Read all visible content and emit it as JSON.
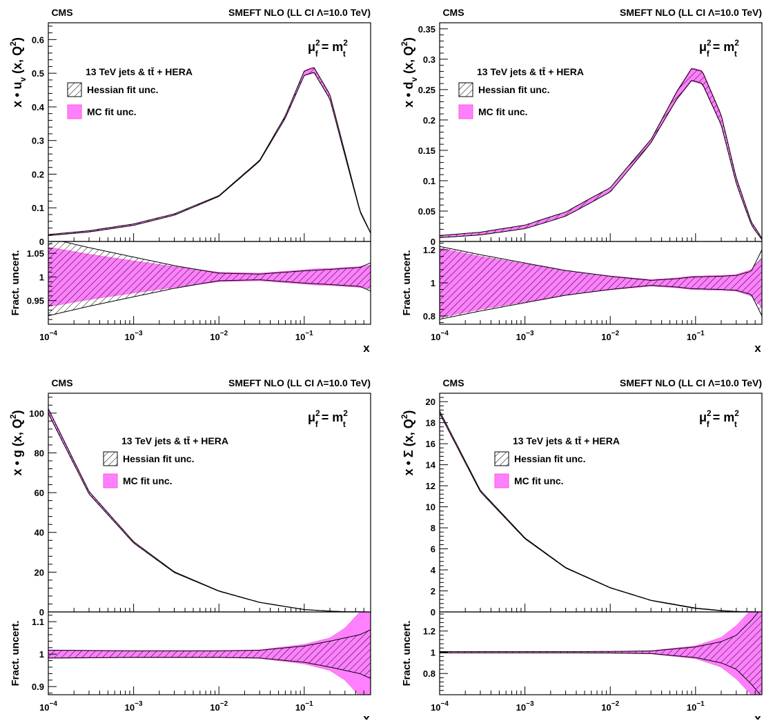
{
  "colors": {
    "mc_band_fill": "#ff80ff",
    "mc_band_edge": "#ff55d4",
    "hessian_hatch": "#000000",
    "axis": "#000000",
    "background": "#ffffff"
  },
  "chart_data": [
    {
      "type": "area",
      "id": "uv",
      "cms_label": "CMS",
      "header": "SMEFT NLO (LL CI Λ=10.0 TeV)",
      "scale_label": {
        "mu": "μ",
        "f_sub": "f",
        "sq": "2",
        "eq": " = m",
        "t_sub": "t",
        "t_sq": "2"
      },
      "ylabel": {
        "prefix": "x • u",
        "sub": "v",
        "suffix": " (x, Q",
        "sup": "2",
        "close": ")"
      },
      "ratio_ylabel": "Fract. uncert.",
      "xlabel": "x",
      "x_log": true,
      "xlim": [
        0.0001,
        0.6
      ],
      "x_ticks": [
        {
          "base": "10",
          "exp": "−4"
        },
        {
          "base": "10",
          "exp": "−3"
        },
        {
          "base": "10",
          "exp": "−2"
        },
        {
          "base": "10",
          "exp": "−1"
        }
      ],
      "ylim": [
        0,
        0.65
      ],
      "y_tick_labels": [
        "0",
        "0.1",
        "0.2",
        "0.3",
        "0.4",
        "0.5",
        "0.6"
      ],
      "ratio_ylim": [
        0.9,
        1.075
      ],
      "ratio_tick_labels": [
        "0.95",
        "1",
        "1.05"
      ],
      "legend": {
        "title": "13 TeV jets & tt̄ + HERA",
        "hessian": "Hessian fit unc.",
        "mc": "MC fit unc.",
        "position": "upper-left"
      },
      "x": [
        0.0001,
        0.0003,
        0.001,
        0.003,
        0.01,
        0.03,
        0.06,
        0.1,
        0.13,
        0.2,
        0.3,
        0.45,
        0.6
      ],
      "central": [
        0.019,
        0.03,
        0.05,
        0.08,
        0.135,
        0.24,
        0.37,
        0.5,
        0.51,
        0.43,
        0.26,
        0.09,
        0.025
      ],
      "hessian_frac": [
        0.082,
        0.062,
        0.042,
        0.024,
        0.008,
        0.006,
        0.01,
        0.013,
        0.014,
        0.016,
        0.018,
        0.02,
        0.03
      ],
      "mc_frac": [
        0.063,
        0.048,
        0.034,
        0.022,
        0.01,
        0.008,
        0.012,
        0.015,
        0.017,
        0.018,
        0.02,
        0.022,
        0.025
      ]
    },
    {
      "type": "area",
      "id": "dv",
      "cms_label": "CMS",
      "header": "SMEFT NLO (LL CI Λ=10.0 TeV)",
      "scale_label": {
        "mu": "μ",
        "f_sub": "f",
        "sq": "2",
        "eq": " = m",
        "t_sub": "t",
        "t_sq": "2"
      },
      "ylabel": {
        "prefix": "x • d",
        "sub": "v",
        "suffix": " (x, Q",
        "sup": "2",
        "close": ")"
      },
      "ratio_ylabel": "Fract. uncert.",
      "xlabel": "x",
      "x_log": true,
      "xlim": [
        0.0001,
        0.6
      ],
      "x_ticks": [
        {
          "base": "10",
          "exp": "−4"
        },
        {
          "base": "10",
          "exp": "−3"
        },
        {
          "base": "10",
          "exp": "−2"
        },
        {
          "base": "10",
          "exp": "−1"
        }
      ],
      "ylim": [
        0,
        0.36
      ],
      "y_tick_labels": [
        "0",
        "0.05",
        "0.1",
        "0.15",
        "0.2",
        "0.25",
        "0.3",
        "0.35"
      ],
      "ratio_ylim": [
        0.75,
        1.25
      ],
      "ratio_tick_labels": [
        "0.8",
        "1",
        "1.2"
      ],
      "legend": {
        "title": "13 TeV jets & tt̄ + HERA",
        "hessian": "Hessian fit unc.",
        "mc": "MC fit unc.",
        "position": "upper-left"
      },
      "x": [
        0.0001,
        0.0003,
        0.001,
        0.003,
        0.01,
        0.03,
        0.06,
        0.09,
        0.12,
        0.2,
        0.3,
        0.45,
        0.6
      ],
      "central": [
        0.008,
        0.013,
        0.024,
        0.045,
        0.085,
        0.165,
        0.24,
        0.275,
        0.27,
        0.2,
        0.1,
        0.03,
        0.004
      ],
      "hessian_frac": [
        0.22,
        0.17,
        0.12,
        0.075,
        0.04,
        0.015,
        0.025,
        0.035,
        0.037,
        0.04,
        0.045,
        0.07,
        0.2
      ],
      "mc_frac": [
        0.21,
        0.16,
        0.115,
        0.073,
        0.042,
        0.02,
        0.03,
        0.04,
        0.042,
        0.045,
        0.05,
        0.08,
        0.15
      ]
    },
    {
      "type": "area",
      "id": "g",
      "cms_label": "CMS",
      "header": "SMEFT NLO (LL CI Λ=10.0 TeV)",
      "scale_label": {
        "mu": "μ",
        "f_sub": "f",
        "sq": "2",
        "eq": " = m",
        "t_sub": "t",
        "t_sq": "2"
      },
      "ylabel": {
        "prefix": "x • g",
        "sub": "",
        "suffix": " (x, Q",
        "sup": "2",
        "close": ")"
      },
      "ratio_ylabel": "Fract. uncert.",
      "xlabel": "x",
      "x_log": true,
      "xlim": [
        0.0001,
        0.6
      ],
      "x_ticks": [
        {
          "base": "10",
          "exp": "−4"
        },
        {
          "base": "10",
          "exp": "−3"
        },
        {
          "base": "10",
          "exp": "−2"
        },
        {
          "base": "10",
          "exp": "−1"
        }
      ],
      "ylim": [
        0,
        110
      ],
      "y_tick_labels": [
        "0",
        "20",
        "40",
        "60",
        "80",
        "100"
      ],
      "ratio_ylim": [
        0.875,
        1.13
      ],
      "ratio_tick_labels": [
        "0.9",
        "1",
        "1.1"
      ],
      "legend": {
        "title": "13 TeV jets & tt̄ + HERA",
        "hessian": "Hessian fit unc.",
        "mc": "MC fit unc.",
        "position": "upper-center"
      },
      "x": [
        0.0001,
        0.0003,
        0.001,
        0.003,
        0.01,
        0.03,
        0.1,
        0.2,
        0.3,
        0.45,
        0.6
      ],
      "central": [
        101,
        60,
        35,
        20,
        10.5,
        4.8,
        1.2,
        0.4,
        0.13,
        0.03,
        0.005
      ],
      "hessian_frac": [
        0.012,
        0.011,
        0.01,
        0.01,
        0.01,
        0.012,
        0.025,
        0.04,
        0.05,
        0.06,
        0.075
      ],
      "mc_frac": [
        0.013,
        0.012,
        0.011,
        0.011,
        0.011,
        0.013,
        0.03,
        0.05,
        0.08,
        0.13,
        0.16
      ]
    },
    {
      "type": "area",
      "id": "sigma",
      "cms_label": "CMS",
      "header": "SMEFT NLO (LL CI Λ=10.0 TeV)",
      "scale_label": {
        "mu": "μ",
        "f_sub": "f",
        "sq": "2",
        "eq": " = m",
        "t_sub": "t",
        "t_sq": "2"
      },
      "ylabel": {
        "prefix": "x • Σ",
        "sub": "",
        "suffix": " (x, Q",
        "sup": "2",
        "close": ")"
      },
      "ratio_ylabel": "Fract. uncert.",
      "xlabel": "x",
      "x_log": true,
      "xlim": [
        0.0001,
        0.6
      ],
      "x_ticks": [
        {
          "base": "10",
          "exp": "−4"
        },
        {
          "base": "10",
          "exp": "−3"
        },
        {
          "base": "10",
          "exp": "−2"
        },
        {
          "base": "10",
          "exp": "−1"
        }
      ],
      "ylim": [
        0,
        20.8
      ],
      "y_tick_labels": [
        "0",
        "2",
        "4",
        "6",
        "8",
        "10",
        "12",
        "14",
        "16",
        "18",
        "20"
      ],
      "ratio_ylim": [
        0.6,
        1.38
      ],
      "ratio_tick_labels": [
        "0.8",
        "1",
        "1.2"
      ],
      "legend": {
        "title": "13 TeV jets & tt̄ + HERA",
        "hessian": "Hessian fit unc.",
        "mc": "MC fit unc.",
        "position": "upper-center"
      },
      "x": [
        0.0001,
        0.0003,
        0.001,
        0.003,
        0.01,
        0.03,
        0.1,
        0.2,
        0.3,
        0.45,
        0.6
      ],
      "central": [
        19,
        11.5,
        7,
        4.2,
        2.3,
        1.1,
        0.35,
        0.12,
        0.04,
        0.008,
        0.001
      ],
      "hessian_frac": [
        0.006,
        0.006,
        0.006,
        0.006,
        0.007,
        0.012,
        0.05,
        0.1,
        0.16,
        0.3,
        0.42
      ],
      "mc_frac": [
        0.008,
        0.007,
        0.007,
        0.007,
        0.009,
        0.015,
        0.06,
        0.14,
        0.25,
        0.4,
        0.55
      ]
    }
  ]
}
